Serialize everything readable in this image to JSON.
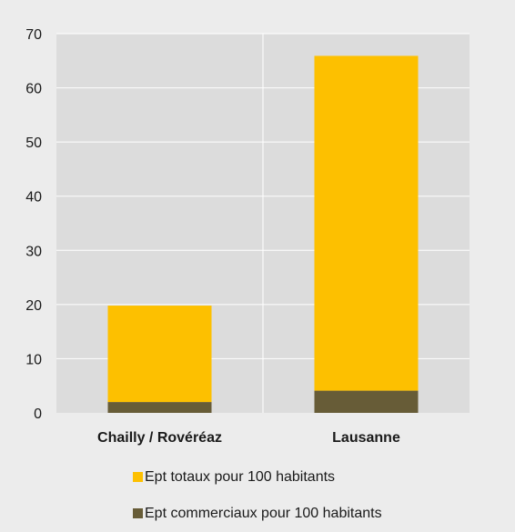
{
  "chart_data": {
    "type": "bar",
    "stacked": true,
    "categories": [
      "Chailly / Rovéréaz",
      "Lausanne"
    ],
    "series": [
      {
        "name": "Ept commerciaux pour 100 habitants",
        "values": [
          2,
          4.1
        ],
        "color": "#675c37"
      },
      {
        "name": "Ept totaux pour 100 habitants",
        "values": [
          17.8,
          61.8
        ],
        "color": "#fdc000"
      }
    ],
    "totals": [
      19.8,
      65.9
    ],
    "ylim": [
      0,
      70
    ],
    "yticks": [
      0,
      10,
      20,
      30,
      40,
      50,
      60,
      70
    ],
    "legend_order": [
      1,
      0
    ],
    "legend_position": "bottom",
    "grid": true,
    "title": "",
    "xlabel": "",
    "ylabel": ""
  },
  "colors": {
    "panel_background": "#ececec",
    "plot_background": "#dcdcdc",
    "gridline": "#ffffff"
  }
}
